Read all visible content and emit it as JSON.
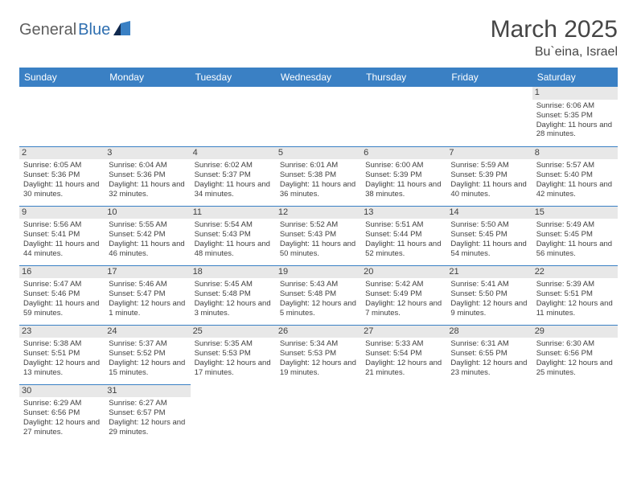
{
  "logo": {
    "part1": "General",
    "part2": "Blue"
  },
  "title": "March 2025",
  "location": "Bu`eina, Israel",
  "headerBg": "#3a80c4",
  "dayNames": [
    "Sunday",
    "Monday",
    "Tuesday",
    "Wednesday",
    "Thursday",
    "Friday",
    "Saturday"
  ],
  "startOffset": 6,
  "days": [
    {
      "n": 1,
      "sr": "6:06 AM",
      "ss": "5:35 PM",
      "dl": "11 hours and 28 minutes."
    },
    {
      "n": 2,
      "sr": "6:05 AM",
      "ss": "5:36 PM",
      "dl": "11 hours and 30 minutes."
    },
    {
      "n": 3,
      "sr": "6:04 AM",
      "ss": "5:36 PM",
      "dl": "11 hours and 32 minutes."
    },
    {
      "n": 4,
      "sr": "6:02 AM",
      "ss": "5:37 PM",
      "dl": "11 hours and 34 minutes."
    },
    {
      "n": 5,
      "sr": "6:01 AM",
      "ss": "5:38 PM",
      "dl": "11 hours and 36 minutes."
    },
    {
      "n": 6,
      "sr": "6:00 AM",
      "ss": "5:39 PM",
      "dl": "11 hours and 38 minutes."
    },
    {
      "n": 7,
      "sr": "5:59 AM",
      "ss": "5:39 PM",
      "dl": "11 hours and 40 minutes."
    },
    {
      "n": 8,
      "sr": "5:57 AM",
      "ss": "5:40 PM",
      "dl": "11 hours and 42 minutes."
    },
    {
      "n": 9,
      "sr": "5:56 AM",
      "ss": "5:41 PM",
      "dl": "11 hours and 44 minutes."
    },
    {
      "n": 10,
      "sr": "5:55 AM",
      "ss": "5:42 PM",
      "dl": "11 hours and 46 minutes."
    },
    {
      "n": 11,
      "sr": "5:54 AM",
      "ss": "5:43 PM",
      "dl": "11 hours and 48 minutes."
    },
    {
      "n": 12,
      "sr": "5:52 AM",
      "ss": "5:43 PM",
      "dl": "11 hours and 50 minutes."
    },
    {
      "n": 13,
      "sr": "5:51 AM",
      "ss": "5:44 PM",
      "dl": "11 hours and 52 minutes."
    },
    {
      "n": 14,
      "sr": "5:50 AM",
      "ss": "5:45 PM",
      "dl": "11 hours and 54 minutes."
    },
    {
      "n": 15,
      "sr": "5:49 AM",
      "ss": "5:45 PM",
      "dl": "11 hours and 56 minutes."
    },
    {
      "n": 16,
      "sr": "5:47 AM",
      "ss": "5:46 PM",
      "dl": "11 hours and 59 minutes."
    },
    {
      "n": 17,
      "sr": "5:46 AM",
      "ss": "5:47 PM",
      "dl": "12 hours and 1 minute."
    },
    {
      "n": 18,
      "sr": "5:45 AM",
      "ss": "5:48 PM",
      "dl": "12 hours and 3 minutes."
    },
    {
      "n": 19,
      "sr": "5:43 AM",
      "ss": "5:48 PM",
      "dl": "12 hours and 5 minutes."
    },
    {
      "n": 20,
      "sr": "5:42 AM",
      "ss": "5:49 PM",
      "dl": "12 hours and 7 minutes."
    },
    {
      "n": 21,
      "sr": "5:41 AM",
      "ss": "5:50 PM",
      "dl": "12 hours and 9 minutes."
    },
    {
      "n": 22,
      "sr": "5:39 AM",
      "ss": "5:51 PM",
      "dl": "12 hours and 11 minutes."
    },
    {
      "n": 23,
      "sr": "5:38 AM",
      "ss": "5:51 PM",
      "dl": "12 hours and 13 minutes."
    },
    {
      "n": 24,
      "sr": "5:37 AM",
      "ss": "5:52 PM",
      "dl": "12 hours and 15 minutes."
    },
    {
      "n": 25,
      "sr": "5:35 AM",
      "ss": "5:53 PM",
      "dl": "12 hours and 17 minutes."
    },
    {
      "n": 26,
      "sr": "5:34 AM",
      "ss": "5:53 PM",
      "dl": "12 hours and 19 minutes."
    },
    {
      "n": 27,
      "sr": "5:33 AM",
      "ss": "5:54 PM",
      "dl": "12 hours and 21 minutes."
    },
    {
      "n": 28,
      "sr": "6:31 AM",
      "ss": "6:55 PM",
      "dl": "12 hours and 23 minutes."
    },
    {
      "n": 29,
      "sr": "6:30 AM",
      "ss": "6:56 PM",
      "dl": "12 hours and 25 minutes."
    },
    {
      "n": 30,
      "sr": "6:29 AM",
      "ss": "6:56 PM",
      "dl": "12 hours and 27 minutes."
    },
    {
      "n": 31,
      "sr": "6:27 AM",
      "ss": "6:57 PM",
      "dl": "12 hours and 29 minutes."
    }
  ],
  "labels": {
    "sunrise": "Sunrise:",
    "sunset": "Sunset:",
    "daylight": "Daylight:"
  }
}
